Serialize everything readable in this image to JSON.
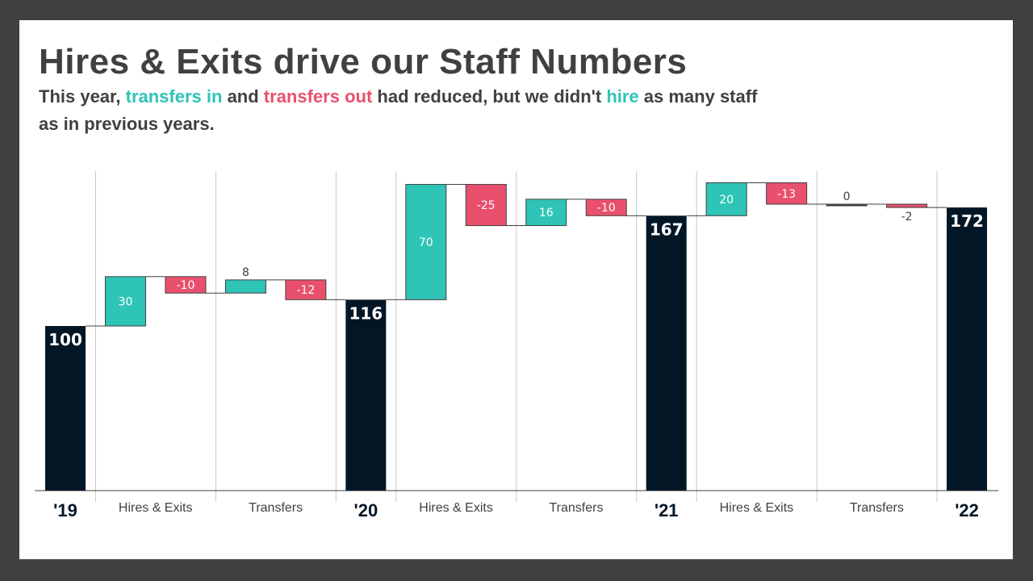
{
  "title": "Hires & Exits drive our Staff Numbers",
  "subtitle": {
    "p1": "This year, ",
    "h1": "transfers in",
    "p2": " and ",
    "h2": "transfers out",
    "p3": " had reduced, but we didn't ",
    "h3": "hire",
    "p4": " as many staff as in previous years."
  },
  "colors": {
    "increase": "#2ec4b6",
    "decrease": "#e9506e",
    "total": "#021626",
    "zero": "#404040"
  },
  "chart_data": {
    "type": "waterfall",
    "title": "Hires & Exits drive our Staff Numbers",
    "steps": [
      {
        "kind": "total",
        "value": 100,
        "label": "100"
      },
      {
        "kind": "delta",
        "value": 30,
        "label": "30"
      },
      {
        "kind": "delta",
        "value": -10,
        "label": "-10"
      },
      {
        "kind": "delta",
        "value": 8,
        "label": "8"
      },
      {
        "kind": "delta",
        "value": -12,
        "label": "-12"
      },
      {
        "kind": "total",
        "value": 116,
        "label": "116"
      },
      {
        "kind": "delta",
        "value": 70,
        "label": "70"
      },
      {
        "kind": "delta",
        "value": -25,
        "label": "-25"
      },
      {
        "kind": "delta",
        "value": 16,
        "label": "16"
      },
      {
        "kind": "delta",
        "value": -10,
        "label": "-10"
      },
      {
        "kind": "total",
        "value": 167,
        "label": "167"
      },
      {
        "kind": "delta",
        "value": 20,
        "label": "20"
      },
      {
        "kind": "delta",
        "value": -13,
        "label": "-13"
      },
      {
        "kind": "delta",
        "value": 0,
        "label": "0"
      },
      {
        "kind": "delta",
        "value": -2,
        "label": "-2"
      },
      {
        "kind": "total",
        "value": 172,
        "label": "172"
      }
    ],
    "categories": [
      {
        "label": "'19",
        "steps": [
          0
        ]
      },
      {
        "label": "Hires & Exits",
        "steps": [
          1,
          2
        ]
      },
      {
        "label": "Transfers",
        "steps": [
          3,
          4
        ]
      },
      {
        "label": "'20",
        "steps": [
          5
        ]
      },
      {
        "label": "Hires & Exits",
        "steps": [
          6,
          7
        ]
      },
      {
        "label": "Transfers",
        "steps": [
          8,
          9
        ]
      },
      {
        "label": "'21",
        "steps": [
          10
        ]
      },
      {
        "label": "Hires & Exits",
        "steps": [
          11,
          12
        ]
      },
      {
        "label": "Transfers",
        "steps": [
          13,
          14
        ]
      },
      {
        "label": "'22",
        "steps": [
          15
        ]
      }
    ],
    "ylim": [
      0,
      190
    ],
    "grid": false
  }
}
